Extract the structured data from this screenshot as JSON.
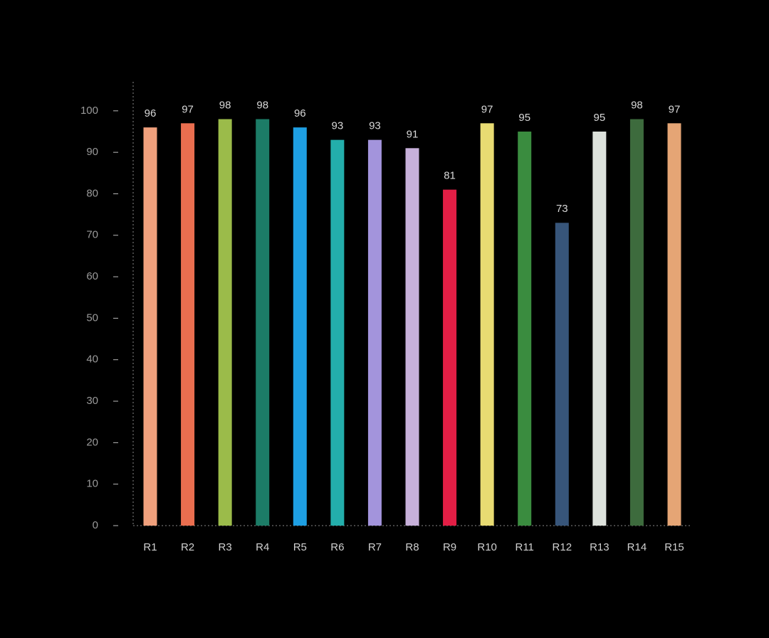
{
  "chart_data": {
    "type": "bar",
    "categories": [
      "R1",
      "R2",
      "R3",
      "R4",
      "R5",
      "R6",
      "R7",
      "R8",
      "R9",
      "R10",
      "R11",
      "R12",
      "R13",
      "R14",
      "R15"
    ],
    "values": [
      96,
      97,
      98,
      98,
      96,
      93,
      93,
      91,
      81,
      97,
      95,
      73,
      95,
      98,
      97
    ],
    "colors": [
      "#f0a07c",
      "#ea6e4f",
      "#9bbb4a",
      "#1c7c67",
      "#1e9fe3",
      "#23aeab",
      "#a394dc",
      "#c7b0da",
      "#e31e45",
      "#e8db72",
      "#3a8c3f",
      "#37557a",
      "#dde2dc",
      "#3d6b3d",
      "#e5a575"
    ],
    "ylim": [
      0,
      107
    ],
    "yticks": [
      0,
      10,
      20,
      30,
      40,
      50,
      60,
      70,
      80,
      90,
      100
    ]
  }
}
